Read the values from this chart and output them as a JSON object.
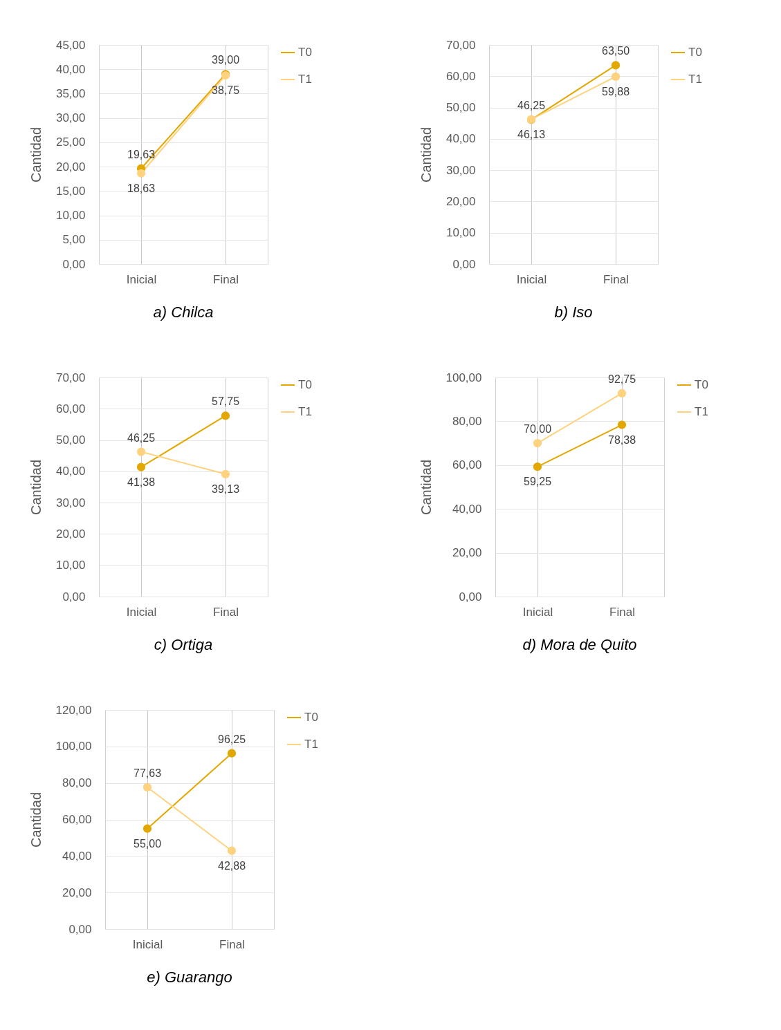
{
  "chart_data": [
    {
      "type": "line",
      "title": "a)   Chilca",
      "ylabel": "Cantidad",
      "categories": [
        "Inicial",
        "Final"
      ],
      "ylim": [
        0,
        45
      ],
      "yticks": [
        {
          "value": 0,
          "label": "0,00"
        },
        {
          "value": 5,
          "label": "5,00"
        },
        {
          "value": 10,
          "label": "10,00"
        },
        {
          "value": 15,
          "label": "15,00"
        },
        {
          "value": 20,
          "label": "20,00"
        },
        {
          "value": 25,
          "label": "25,00"
        },
        {
          "value": 30,
          "label": "30,00"
        },
        {
          "value": 35,
          "label": "35,00"
        },
        {
          "value": 40,
          "label": "40,00"
        },
        {
          "value": 45,
          "label": "45,00"
        }
      ],
      "grid": true,
      "legend": "right",
      "marker": "circle",
      "series": [
        {
          "name": "T0",
          "color": "#e2a700",
          "values": [
            19.63,
            39.0
          ],
          "value_labels": [
            "19,63",
            "39,00"
          ]
        },
        {
          "name": "T1",
          "color": "#ffd27f",
          "values": [
            18.63,
            38.75
          ],
          "value_labels": [
            "18,63",
            "38,75"
          ]
        }
      ]
    },
    {
      "type": "line",
      "title": "b)   Iso",
      "ylabel": "Cantidad",
      "categories": [
        "Inicial",
        "Final"
      ],
      "ylim": [
        0,
        70
      ],
      "yticks": [
        {
          "value": 0,
          "label": "0,00"
        },
        {
          "value": 10,
          "label": "10,00"
        },
        {
          "value": 20,
          "label": "20,00"
        },
        {
          "value": 30,
          "label": "30,00"
        },
        {
          "value": 40,
          "label": "40,00"
        },
        {
          "value": 50,
          "label": "50,00"
        },
        {
          "value": 60,
          "label": "60,00"
        },
        {
          "value": 70,
          "label": "70,00"
        }
      ],
      "grid": true,
      "legend": "right",
      "marker": "circle",
      "series": [
        {
          "name": "T0",
          "color": "#e2a700",
          "values": [
            46.13,
            63.5
          ],
          "value_labels": [
            "46,13",
            "63,50"
          ]
        },
        {
          "name": "T1",
          "color": "#ffd27f",
          "values": [
            46.25,
            59.88
          ],
          "value_labels": [
            "46,25",
            "59,88"
          ]
        }
      ]
    },
    {
      "type": "line",
      "title": "c)   Ortiga",
      "ylabel": "Cantidad",
      "categories": [
        "Inicial",
        "Final"
      ],
      "ylim": [
        0,
        70
      ],
      "yticks": [
        {
          "value": 0,
          "label": "0,00"
        },
        {
          "value": 10,
          "label": "10,00"
        },
        {
          "value": 20,
          "label": "20,00"
        },
        {
          "value": 30,
          "label": "30,00"
        },
        {
          "value": 40,
          "label": "40,00"
        },
        {
          "value": 50,
          "label": "50,00"
        },
        {
          "value": 60,
          "label": "60,00"
        },
        {
          "value": 70,
          "label": "70,00"
        }
      ],
      "grid": true,
      "legend": "right",
      "marker": "circle",
      "series": [
        {
          "name": "T0",
          "color": "#e2a700",
          "values": [
            41.38,
            57.75
          ],
          "value_labels": [
            "41,38",
            "57,75"
          ]
        },
        {
          "name": "T1",
          "color": "#ffd27f",
          "values": [
            46.25,
            39.13
          ],
          "value_labels": [
            "46,25",
            "39,13"
          ]
        }
      ]
    },
    {
      "type": "line",
      "title": "d)   Mora de Quito",
      "ylabel": "Cantidad",
      "categories": [
        "Inicial",
        "Final"
      ],
      "ylim": [
        0,
        100
      ],
      "yticks": [
        {
          "value": 0,
          "label": "0,00"
        },
        {
          "value": 20,
          "label": "20,00"
        },
        {
          "value": 40,
          "label": "40,00"
        },
        {
          "value": 60,
          "label": "60,00"
        },
        {
          "value": 80,
          "label": "80,00"
        },
        {
          "value": 100,
          "label": "100,00"
        }
      ],
      "grid": true,
      "legend": "right",
      "marker": "circle",
      "series": [
        {
          "name": "T0",
          "color": "#e2a700",
          "values": [
            59.25,
            78.38
          ],
          "value_labels": [
            "59,25",
            "78,38"
          ]
        },
        {
          "name": "T1",
          "color": "#ffd27f",
          "values": [
            70.0,
            92.75
          ],
          "value_labels": [
            "70,00",
            "92,75"
          ]
        }
      ]
    },
    {
      "type": "line",
      "title": "e)   Guarango",
      "ylabel": "Cantidad",
      "categories": [
        "Inicial",
        "Final"
      ],
      "ylim": [
        0,
        120
      ],
      "yticks": [
        {
          "value": 0,
          "label": "0,00"
        },
        {
          "value": 20,
          "label": "20,00"
        },
        {
          "value": 40,
          "label": "40,00"
        },
        {
          "value": 60,
          "label": "60,00"
        },
        {
          "value": 80,
          "label": "80,00"
        },
        {
          "value": 100,
          "label": "100,00"
        },
        {
          "value": 120,
          "label": "120,00"
        }
      ],
      "grid": true,
      "legend": "right",
      "marker": "circle",
      "series": [
        {
          "name": "T0",
          "color": "#e2a700",
          "values": [
            55.0,
            96.25
          ],
          "value_labels": [
            "55,00",
            "96,25"
          ]
        },
        {
          "name": "T1",
          "color": "#ffd27f",
          "values": [
            77.63,
            42.88
          ],
          "value_labels": [
            "77,63",
            "42,88"
          ]
        }
      ]
    }
  ]
}
